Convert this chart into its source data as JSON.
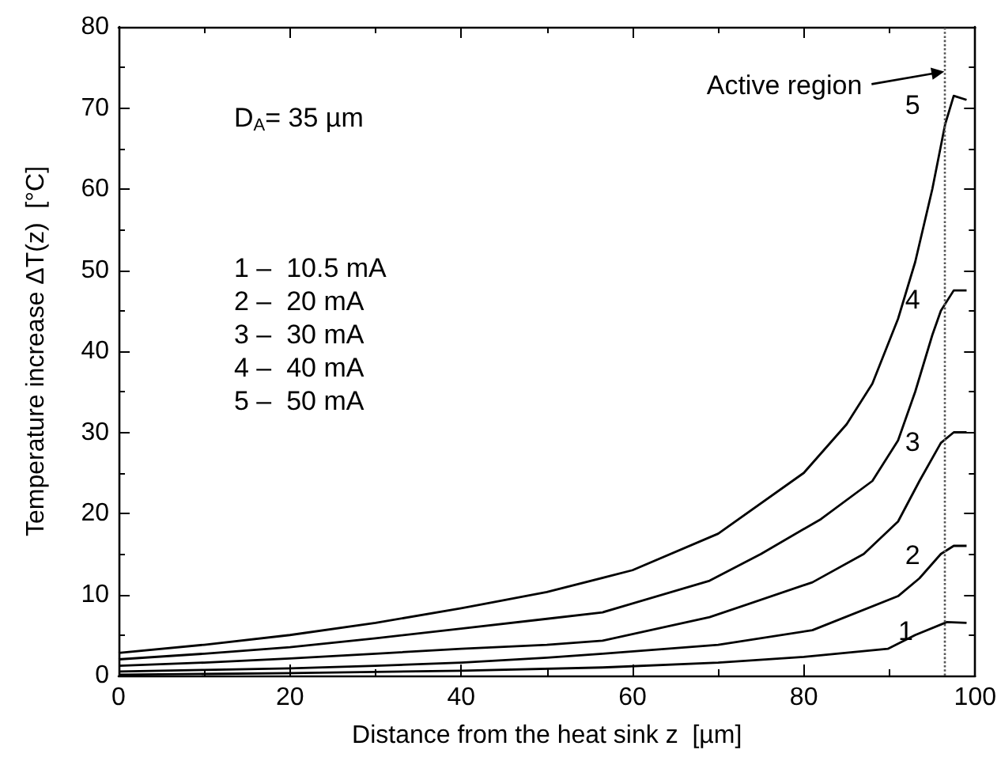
{
  "chart_data": {
    "type": "line",
    "xlabel": "Distance from the heat sink z  [µm]",
    "ylabel": "Temperature increase ΔT(z)  [°C]",
    "xlim": [
      0,
      100
    ],
    "xticks": [
      0,
      20,
      40,
      60,
      80,
      100
    ],
    "ylim": [
      0,
      80
    ],
    "yticks": [
      0,
      10,
      20,
      30,
      40,
      50,
      60,
      70,
      80
    ],
    "grid": false,
    "legend": "right",
    "marker": "none",
    "line_style": "solid",
    "series": [
      {
        "name": "1",
        "color": "#000000",
        "x": [
          0,
          20,
          40,
          56.5,
          70,
          80,
          89.8,
          93,
          96.7,
          99
        ],
        "values": [
          0.1,
          0.3,
          0.6,
          1,
          1.6,
          2.3,
          3.3,
          5,
          6.6,
          6.5
        ]
      },
      {
        "name": "2",
        "color": "#000000",
        "x": [
          0,
          10,
          20,
          30,
          40,
          50,
          56.5,
          70,
          81,
          91,
          93.5,
          96,
          97.5,
          99
        ],
        "values": [
          0.5,
          0.7,
          0.9,
          1.2,
          1.6,
          2.2,
          2.7,
          3.8,
          5.6,
          9.8,
          12,
          15,
          16,
          16
        ]
      },
      {
        "name": "3",
        "color": "#000000",
        "x": [
          0,
          10,
          20,
          30,
          40,
          50,
          56.5,
          69,
          81,
          87,
          91,
          93.5,
          96,
          97.5,
          99
        ],
        "values": [
          1.2,
          1.6,
          2.1,
          2.7,
          3.3,
          3.8,
          4.3,
          7.2,
          11.5,
          15,
          19,
          24,
          28.7,
          30,
          30
        ]
      },
      {
        "name": "4",
        "color": "#000000",
        "x": [
          0,
          10,
          20,
          30,
          40,
          50,
          56.5,
          69,
          75,
          82,
          88,
          91,
          93,
          95,
          96,
          97.5,
          99
        ],
        "values": [
          2,
          2.7,
          3.5,
          4.6,
          5.8,
          7,
          7.8,
          11.7,
          15,
          19.3,
          24,
          29,
          35,
          42,
          45,
          47.5,
          47.5
        ]
      },
      {
        "name": "5",
        "color": "#000000",
        "x": [
          0,
          10,
          20,
          30,
          40,
          50,
          60,
          70,
          80,
          85,
          88,
          91,
          93,
          95,
          96.5,
          97.5,
          99
        ],
        "values": [
          2.8,
          3.8,
          5,
          6.5,
          8.3,
          10.3,
          13,
          17.5,
          25,
          31,
          36,
          44,
          51,
          60,
          68,
          71.5,
          71
        ]
      }
    ],
    "ref_lines": [
      {
        "axis": "x",
        "value": 96.4,
        "line_style": "dotted",
        "color": "#555555"
      }
    ],
    "annotations": [
      "D$_{A}$= 35 µm",
      "1 –  10.5 mA",
      "2 –  20 mA",
      "3 –  30 mA",
      "4 –  40 mA",
      "5 –  50 mA",
      {
        "text": "Active region",
        "x": 96.4,
        "y": 74.5
      }
    ]
  }
}
